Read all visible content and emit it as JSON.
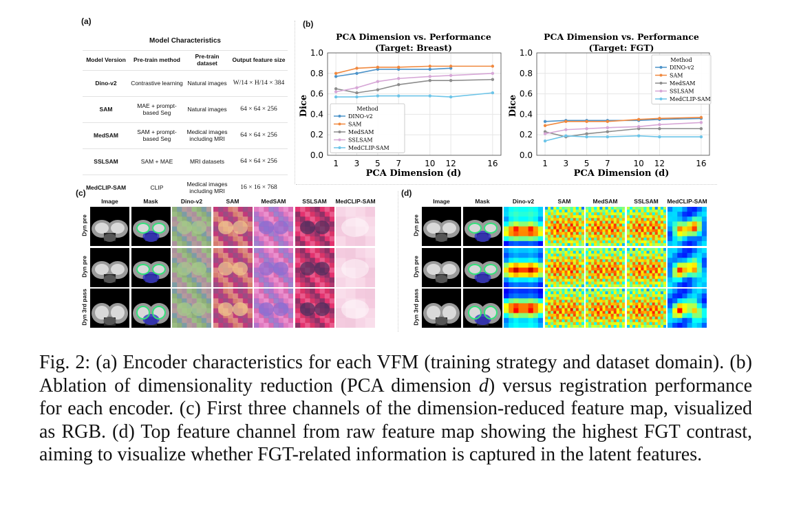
{
  "panel_a": {
    "label": "(a)",
    "table_title": "Model Characteristics",
    "columns": [
      "Model Version",
      "Pre-train method",
      "Pre-train dataset",
      "Output feature size"
    ],
    "rows": [
      [
        "Dino-v2",
        "Contrastive learning",
        "Natural images",
        "W/14 × H/14 × 384"
      ],
      [
        "SAM",
        "MAE + prompt-based Seg",
        "Natural images",
        "64 × 64 × 256"
      ],
      [
        "MedSAM",
        "SAM + prompt-based Seg",
        "Medical images including MRI",
        "64 × 64 × 256"
      ],
      [
        "SSLSAM",
        "SAM + MAE",
        "MRI datasets",
        "64 × 64 × 256"
      ],
      [
        "MedCLIP-SAM",
        "CLIP",
        "Medical images including MRI",
        "16 × 16 × 768"
      ]
    ]
  },
  "panel_b": {
    "label": "(b)",
    "chart_data": [
      {
        "type": "line",
        "title": "PCA Dimension vs. Performance",
        "subtitle": "(Target: Breast)",
        "xlabel": "PCA Dimension (d)",
        "ylabel": "Dice",
        "x": [
          1,
          3,
          5,
          7,
          10,
          12,
          16
        ],
        "xticks": [
          1,
          3,
          5,
          7,
          10,
          12,
          16
        ],
        "ylim": [
          0.0,
          1.0
        ],
        "yticks": [
          "0.0",
          "0.2",
          "0.4",
          "0.6",
          "0.8",
          "1.0"
        ],
        "legend_title": "Method",
        "legend_position": "lower-left",
        "series": [
          {
            "name": "DINO-v2",
            "color": "#4c93c9",
            "values": [
              0.77,
              0.8,
              0.84,
              0.84,
              0.84,
              0.85,
              null
            ]
          },
          {
            "name": "SAM",
            "color": "#f0883e",
            "values": [
              0.8,
              0.85,
              0.86,
              0.86,
              0.87,
              0.87,
              0.87
            ]
          },
          {
            "name": "MedSAM",
            "color": "#8c8c8c",
            "values": [
              0.65,
              0.61,
              0.64,
              0.69,
              0.73,
              0.73,
              0.74
            ]
          },
          {
            "name": "SSLSAM",
            "color": "#d6a6d6",
            "values": [
              0.62,
              0.66,
              0.72,
              0.75,
              0.77,
              0.78,
              0.8
            ]
          },
          {
            "name": "MedCLIP-SAM",
            "color": "#6cc4e8",
            "values": [
              0.57,
              0.57,
              0.58,
              0.58,
              0.58,
              0.57,
              0.61
            ]
          }
        ]
      },
      {
        "type": "line",
        "title": "PCA Dimension vs. Performance",
        "subtitle": "(Target: FGT)",
        "xlabel": "PCA Dimension (d)",
        "ylabel": "Dice",
        "x": [
          1,
          3,
          5,
          7,
          10,
          12,
          16
        ],
        "xticks": [
          1,
          3,
          5,
          7,
          10,
          12,
          16
        ],
        "ylim": [
          0.0,
          1.0
        ],
        "yticks": [
          "0.0",
          "0.2",
          "0.4",
          "0.6",
          "0.8",
          "1.0"
        ],
        "legend_title": "Method",
        "legend_position": "upper-right",
        "series": [
          {
            "name": "DINO-v2",
            "color": "#4c93c9",
            "values": [
              0.33,
              0.34,
              0.34,
              0.34,
              0.34,
              0.35,
              0.36
            ]
          },
          {
            "name": "SAM",
            "color": "#f0883e",
            "values": [
              0.29,
              0.33,
              0.33,
              0.33,
              0.35,
              0.36,
              0.37
            ]
          },
          {
            "name": "MedSAM",
            "color": "#8c8c8c",
            "values": [
              0.23,
              0.18,
              0.21,
              0.23,
              0.26,
              0.26,
              0.26
            ]
          },
          {
            "name": "SSLSAM",
            "color": "#d6a6d6",
            "values": [
              0.21,
              0.25,
              0.26,
              0.27,
              0.28,
              0.3,
              0.32
            ]
          },
          {
            "name": "MedCLIP-SAM",
            "color": "#6cc4e8",
            "values": [
              0.14,
              0.19,
              0.18,
              0.18,
              0.19,
              0.18,
              0.18
            ]
          }
        ]
      }
    ]
  },
  "panel_c": {
    "label": "(c)",
    "columns": [
      "Image",
      "Mask",
      "Dino-v2",
      "SAM",
      "MedSAM",
      "SSLSAM",
      "MedCLIP-SAM"
    ],
    "rows": [
      "Dyn pre",
      "Dyn pre",
      "Dyn 3rd pass"
    ]
  },
  "panel_d": {
    "label": "(d)",
    "columns": [
      "Image",
      "Mask",
      "Dino-v2",
      "SAM",
      "MedSAM",
      "SSLSAM",
      "MedCLIP-SAM"
    ],
    "rows": [
      "Dyn pre",
      "Dyn pre",
      "Dyn 3rd pass"
    ]
  },
  "caption": {
    "lead": "Fig. 2: ",
    "text_1": "(a) Encoder characteristics for each VFM (training strategy and dataset domain). (b) Ablation of dimensionality reduction (PCA dimension ",
    "var_d": "d",
    "text_2": ") versus registration performance for each encoder. (c) First three channels of the dimension-reduced feature map, visualized as RGB. (d) Top feature channel from raw feature map showing the highest FGT contrast, aiming to visualize whether FGT-related information is captured in the latent features."
  }
}
